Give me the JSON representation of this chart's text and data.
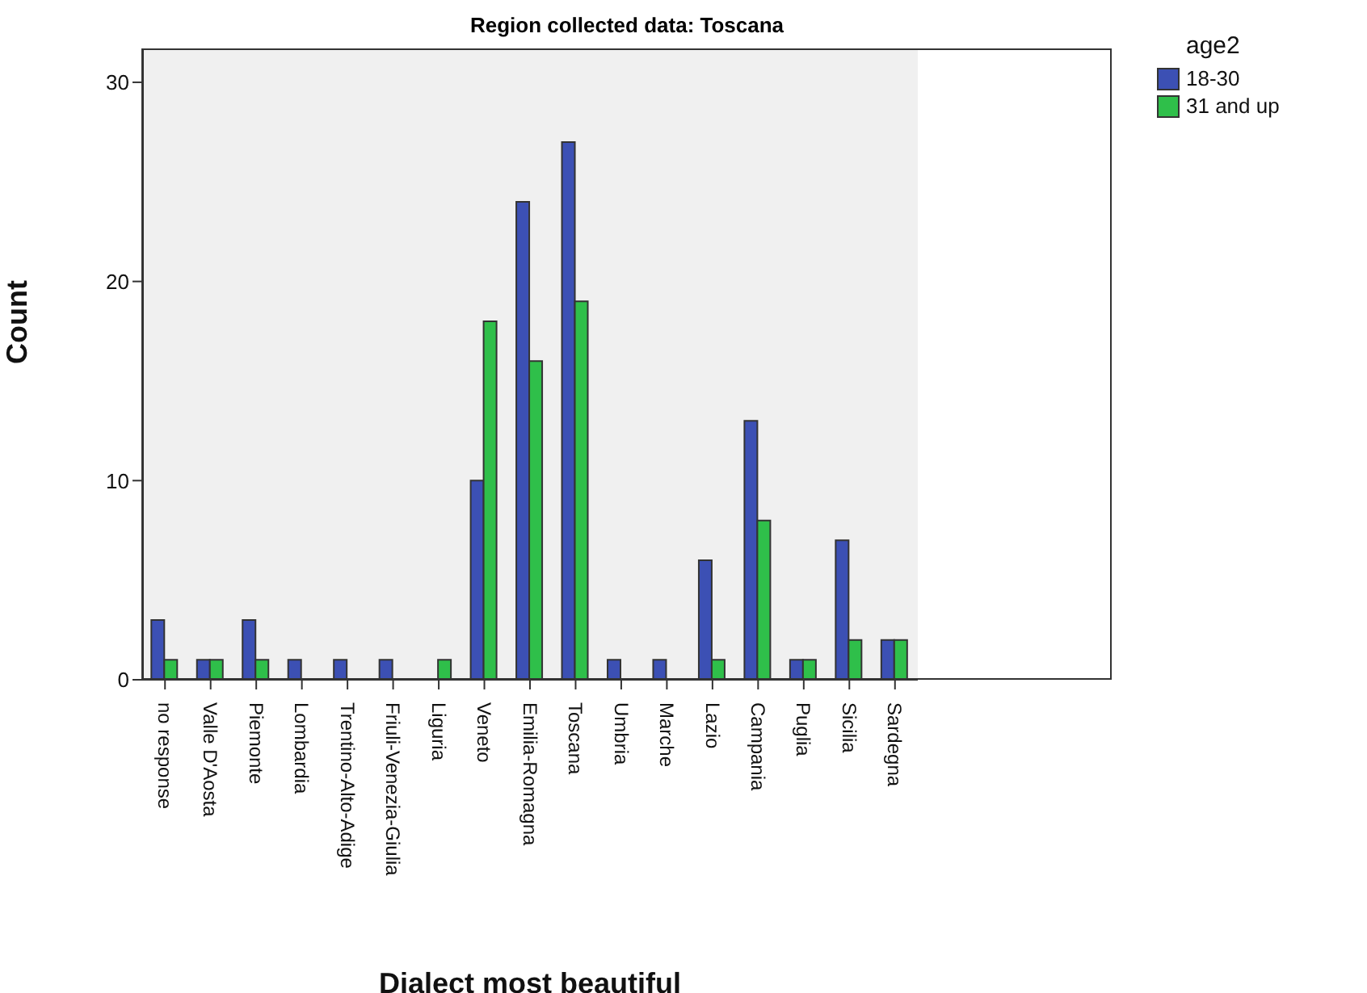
{
  "chart_data": {
    "type": "bar",
    "title": "Region collected data: Toscana",
    "xlabel": "Dialect most beautiful",
    "ylabel": "Count",
    "legend_title": "age2",
    "categories": [
      "no response",
      "Valle D'Aosta",
      "Piemonte",
      "Lombardia",
      "Trentino-Alto-Adige",
      "Friuli-Venezia-Giulia",
      "Liguria",
      "Veneto",
      "Emilia-Romagna",
      "Toscana",
      "Umbria",
      "Marche",
      "Lazio",
      "Campania",
      "Puglia",
      "Sicilia",
      "Sardegna"
    ],
    "series": [
      {
        "name": "18-30",
        "color": "#3c50b4",
        "values": [
          3,
          1,
          3,
          1,
          1,
          1,
          null,
          10,
          24,
          27,
          1,
          1,
          6,
          13,
          1,
          7,
          2
        ]
      },
      {
        "name": "31 and up",
        "color": "#2fbf4a",
        "values": [
          1,
          1,
          1,
          null,
          null,
          null,
          1,
          18,
          16,
          19,
          null,
          null,
          1,
          8,
          1,
          2,
          2
        ]
      }
    ],
    "ylim": [
      0,
      31.7
    ],
    "yticks": [
      0,
      10,
      20,
      30
    ],
    "grid": false,
    "legend": "top right"
  }
}
